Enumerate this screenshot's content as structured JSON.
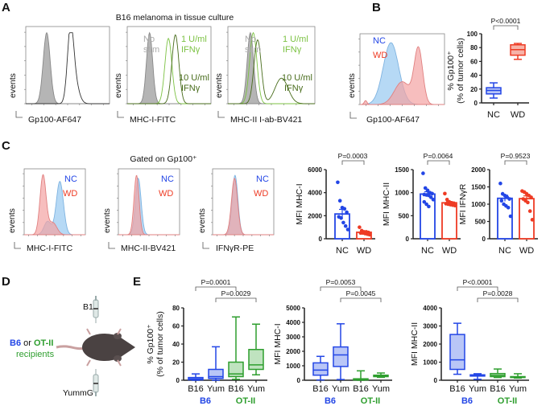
{
  "panels": {
    "a": "A",
    "b": "B",
    "c": "C",
    "d": "D",
    "e": "E"
  },
  "colors": {
    "nc": "#2346e6",
    "wd": "#ee3b24",
    "b6": "#2346e6",
    "ot2": "#2e9e2e",
    "ifn1": "#7cc243",
    "ifn10": "#476b1a",
    "nostim": "#aaaaaa",
    "nc_fill": "#a9d2f3",
    "wd_fill": "#f3a3a3"
  },
  "a": {
    "title": "B16 melanoma in tissue culture",
    "y_label": "events",
    "hist1": {
      "x_label": "Gp100-AF647"
    },
    "hist2": {
      "x_label": "MHC-I-FITC",
      "nostim": [
        "No",
        "stim"
      ],
      "low": [
        "1 U/ml",
        "IFNγ"
      ],
      "high": [
        "10 U/ml",
        "IFNγ"
      ]
    },
    "hist3": {
      "x_label": "MHC-II I-ab-BV421",
      "nostim": [
        "No",
        "stim"
      ],
      "low": [
        "1 U/ml",
        "IFNγ"
      ],
      "high": [
        "10 U/ml",
        "IFNγ"
      ]
    }
  },
  "b": {
    "hist": {
      "x_label": "Gp100-AF647",
      "y_label": "events",
      "legend": [
        "NC",
        "WD"
      ]
    },
    "box": {
      "y_label": [
        "% Gp100⁺",
        "(% of tumor cells)"
      ],
      "p": "P<0.0001"
    }
  },
  "c": {
    "title": "Gated on Gp100⁺",
    "y_label": "events",
    "legend": [
      "NC",
      "WD"
    ],
    "hist_labels": [
      "MHC-I-FITC",
      "MHC-II-BV421",
      "IFNγR-PE"
    ],
    "bar_p": [
      "P=0.0003",
      "P=0.0064",
      "P=0.9523"
    ]
  },
  "d": {
    "tumor_top": "B16",
    "tumor_bottom": "YummG",
    "b6": "B6",
    "or": " or ",
    "ot2": "OT-II",
    "recipients": "recipients"
  },
  "e": {
    "p": [
      [
        "P=0.0001",
        "P=0.0029"
      ],
      [
        "P=0.0053",
        "P=0.0045"
      ],
      [
        "P<0.0001",
        "P=0.0028"
      ]
    ],
    "groups": [
      "B6",
      "OT-II"
    ]
  },
  "chart_data": [
    {
      "id": "A-hist1",
      "type": "area",
      "xlabel": "Gp100-AF647",
      "ylabel": "events",
      "x_scale": "log",
      "series": [
        {
          "style": "filled-gray",
          "peaks": [
            [
              0.5,
              0.25,
              1
            ]
          ]
        },
        {
          "style": "open-black",
          "peaks": [
            [
              2.2,
              0.22,
              0.95
            ],
            [
              2.5,
              0.3,
              0.3
            ]
          ]
        }
      ]
    },
    {
      "id": "A-hist2",
      "type": "area",
      "xlabel": "MHC-I-FITC",
      "ylabel": "events",
      "x_scale": "log",
      "series": [
        {
          "name": "No stim",
          "style": "filled-gray",
          "peaks": [
            [
              0.6,
              0.22,
              1
            ]
          ]
        },
        {
          "name": "1 U/ml IFNγ",
          "style": "ifn1",
          "peaks": [
            [
              1.95,
              0.25,
              0.92
            ]
          ]
        },
        {
          "name": "10 U/ml IFNγ",
          "style": "ifn10",
          "peaks": [
            [
              2.45,
              0.25,
              0.97
            ]
          ]
        }
      ]
    },
    {
      "id": "A-hist3",
      "type": "area",
      "xlabel": "MHC-II I-ab-BV421",
      "ylabel": "events",
      "x_scale": "log",
      "series": [
        {
          "name": "No stim",
          "style": "filled-gray",
          "peaks": [
            [
              0.55,
              0.22,
              1
            ]
          ]
        },
        {
          "name": "1 U/ml IFNγ",
          "style": "ifn1",
          "peaks": [
            [
              0.75,
              0.25,
              1
            ]
          ]
        },
        {
          "name": "10 U/ml IFNγ",
          "style": "ifn10",
          "peaks": [
            [
              1.05,
              0.25,
              0.9
            ],
            [
              2.7,
              0.45,
              0.36
            ]
          ]
        }
      ]
    },
    {
      "id": "B-hist",
      "type": "area",
      "xlabel": "Gp100-AF647",
      "ylabel": "events",
      "x_scale": "log",
      "series": [
        {
          "name": "NC",
          "style": "nc",
          "peaks": [
            [
              1.2,
              0.55,
              0.95
            ]
          ]
        },
        {
          "name": "WD",
          "style": "wd",
          "peaks": [
            [
              3.15,
              0.3,
              0.85
            ],
            [
              2.0,
              0.55,
              0.35
            ],
            [
              -0.6,
              0.1,
              0.06
            ]
          ]
        }
      ]
    },
    {
      "id": "B-box",
      "type": "box",
      "ylabel": "% Gp100⁺ (% of tumor cells)",
      "ylim": [
        0,
        100
      ],
      "yticks": [
        0,
        20,
        40,
        60,
        80,
        100
      ],
      "categories": [
        "NC",
        "WD"
      ],
      "boxes": [
        {
          "min": 7,
          "q1": 13,
          "median": 18,
          "q3": 22,
          "max": 29,
          "color": "nc"
        },
        {
          "min": 63,
          "q1": 69,
          "median": 77,
          "q3": 84,
          "max": 86,
          "color": "wd"
        }
      ]
    },
    {
      "id": "C-hist1",
      "type": "area",
      "xlabel": "MHC-I-FITC",
      "ylabel": "events",
      "x_scale": "log",
      "series": [
        {
          "name": "NC",
          "style": "nc",
          "peaks": [
            [
              2.5,
              0.35,
              0.88
            ],
            [
              1.3,
              0.35,
              0.22
            ]
          ]
        },
        {
          "name": "WD",
          "style": "wd",
          "peaks": [
            [
              0.85,
              0.3,
              0.98
            ],
            [
              1.8,
              0.4,
              0.2
            ]
          ]
        }
      ]
    },
    {
      "id": "C-hist2",
      "type": "area",
      "xlabel": "MHC-II-BV421",
      "ylabel": "events",
      "x_scale": "log",
      "series": [
        {
          "name": "NC",
          "style": "nc",
          "peaks": [
            [
              0.95,
              0.28,
              0.93
            ]
          ]
        },
        {
          "name": "WD",
          "style": "wd",
          "peaks": [
            [
              0.78,
              0.25,
              0.98
            ]
          ]
        }
      ]
    },
    {
      "id": "C-hist3",
      "type": "area",
      "xlabel": "IFNγR-PE",
      "ylabel": "events",
      "x_scale": "log",
      "series": [
        {
          "name": "NC",
          "style": "nc",
          "peaks": [
            [
              1.2,
              0.28,
              0.98
            ]
          ]
        },
        {
          "name": "WD",
          "style": "wd",
          "peaks": [
            [
              1.15,
              0.3,
              0.93
            ]
          ]
        }
      ]
    },
    {
      "id": "C-bar1",
      "type": "bar",
      "ylabel": "MFI MHC-I",
      "ylim": [
        0,
        6000
      ],
      "yticks": [
        0,
        2000,
        4000,
        6000
      ],
      "categories": [
        "NC",
        "WD"
      ],
      "bars": [
        {
          "mean": 2150,
          "sem": 400,
          "points": [
            4900,
            3300,
            2700,
            2600,
            2300,
            1900,
            1800,
            1400,
            1100,
            800
          ],
          "color": "nc"
        },
        {
          "mean": 560,
          "sem": 80,
          "points": [
            1000,
            700,
            600,
            600,
            550,
            500,
            500,
            450,
            400,
            350
          ],
          "color": "wd"
        }
      ]
    },
    {
      "id": "C-bar2",
      "type": "bar",
      "ylabel": "MFI MHC-II",
      "ylim": [
        0,
        1500
      ],
      "yticks": [
        0,
        500,
        1000,
        1500
      ],
      "categories": [
        "NC",
        "WD"
      ],
      "bars": [
        {
          "mean": 970,
          "sem": 50,
          "points": [
            1420,
            1100,
            1050,
            1000,
            980,
            960,
            950,
            940,
            900,
            850,
            800,
            750,
            700
          ],
          "color": "nc"
        },
        {
          "mean": 780,
          "sem": 25,
          "points": [
            980,
            850,
            800,
            780,
            770,
            760,
            750,
            740,
            730,
            720
          ],
          "color": "wd"
        }
      ]
    },
    {
      "id": "C-bar3",
      "type": "bar",
      "ylabel": "MFI IFNγR",
      "ylim": [
        0,
        2000
      ],
      "yticks": [
        0,
        500,
        1000,
        1500,
        2000
      ],
      "categories": [
        "NC",
        "WD"
      ],
      "bars": [
        {
          "mean": 1170,
          "sem": 90,
          "points": [
            1600,
            1300,
            1250,
            1200,
            1150,
            1100,
            1000,
            950,
            900,
            650
          ],
          "color": "nc"
        },
        {
          "mean": 1160,
          "sem": 80,
          "points": [
            1380,
            1350,
            1300,
            1250,
            1200,
            1150,
            1100,
            1050,
            800,
            550
          ],
          "color": "wd"
        }
      ]
    },
    {
      "id": "E-box1",
      "type": "box",
      "ylabel": "% Gp100⁺ (% of tumor cells)",
      "ylim": [
        0,
        80
      ],
      "yticks": [
        0,
        20,
        40,
        60,
        80
      ],
      "categories": [
        "B16",
        "Yum",
        "B16",
        "Yum"
      ],
      "boxes": [
        {
          "min": 0,
          "q1": 0.5,
          "median": 1.5,
          "q3": 3,
          "max": 7,
          "color": "b6"
        },
        {
          "min": 0,
          "q1": 2,
          "median": 4,
          "q3": 12,
          "max": 37,
          "color": "b6"
        },
        {
          "min": 1,
          "q1": 4,
          "median": 7,
          "q3": 20,
          "max": 70,
          "color": "ot2"
        },
        {
          "min": 6,
          "q1": 12,
          "median": 17,
          "q3": 34,
          "max": 62,
          "color": "ot2"
        }
      ]
    },
    {
      "id": "E-box2",
      "type": "box",
      "ylabel": "MFI MHC-I",
      "ylim": [
        0,
        5000
      ],
      "yticks": [
        0,
        1000,
        2000,
        3000,
        4000,
        5000
      ],
      "categories": [
        "B16",
        "Yum",
        "B16",
        "Yum"
      ],
      "boxes": [
        {
          "min": 20,
          "q1": 350,
          "median": 700,
          "q3": 1200,
          "max": 1650,
          "color": "b6"
        },
        {
          "min": 50,
          "q1": 950,
          "median": 1750,
          "q3": 2300,
          "max": 3900,
          "color": "b6"
        },
        {
          "min": 0,
          "q1": 20,
          "median": 50,
          "q3": 100,
          "max": 650,
          "color": "ot2"
        },
        {
          "min": 200,
          "q1": 250,
          "median": 300,
          "q3": 350,
          "max": 500,
          "color": "ot2"
        }
      ]
    },
    {
      "id": "E-box3",
      "type": "box",
      "ylabel": "MFI MHC-II",
      "ylim": [
        0,
        4000
      ],
      "yticks": [
        0,
        1000,
        2000,
        3000,
        4000
      ],
      "categories": [
        "B16",
        "Yum",
        "B16",
        "Yum"
      ],
      "boxes": [
        {
          "min": 330,
          "q1": 600,
          "median": 1130,
          "q3": 2530,
          "max": 3150,
          "color": "b6"
        },
        {
          "min": 50,
          "q1": 230,
          "median": 260,
          "q3": 300,
          "max": 360,
          "color": "b6"
        },
        {
          "min": 150,
          "q1": 200,
          "median": 270,
          "q3": 370,
          "max": 620,
          "color": "ot2"
        },
        {
          "min": 120,
          "q1": 150,
          "median": 170,
          "q3": 200,
          "max": 360,
          "color": "ot2"
        }
      ]
    }
  ]
}
